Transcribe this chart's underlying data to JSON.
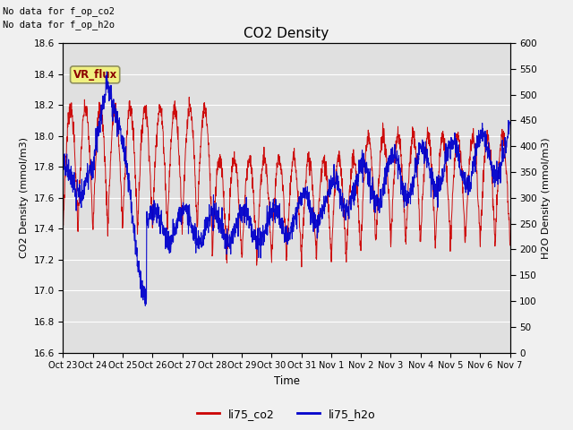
{
  "title": "CO2 Density",
  "xlabel": "Time",
  "ylabel_left": "CO2 Density (mmol/m3)",
  "ylabel_right": "H2O Density (mmol/m3)",
  "top_text_line1": "No data for f_op_co2",
  "top_text_line2": "No data for f_op_h2o",
  "tab_label": "VR_flux",
  "xtick_labels": [
    "Oct 23",
    "Oct 24",
    "Oct 25",
    "Oct 26",
    "Oct 27",
    "Oct 28",
    "Oct 29",
    "Oct 30",
    "Oct 31",
    "Nov 1",
    "Nov 2",
    "Nov 3",
    "Nov 4",
    "Nov 5",
    "Nov 6",
    "Nov 7"
  ],
  "ylim_left": [
    16.6,
    18.6
  ],
  "ylim_right": [
    0,
    600
  ],
  "yticks_left": [
    16.6,
    16.8,
    17.0,
    17.2,
    17.4,
    17.6,
    17.8,
    18.0,
    18.2,
    18.4,
    18.6
  ],
  "yticks_right": [
    0,
    50,
    100,
    150,
    200,
    250,
    300,
    350,
    400,
    450,
    500,
    550,
    600
  ],
  "co2_color": "#CC0000",
  "h2o_color": "#0000CC",
  "plot_bg_color": "#E0E0E0",
  "fig_bg_color": "#F0F0F0",
  "legend_co2": "li75_co2",
  "legend_h2o": "li75_h2o",
  "grid_color": "#FFFFFF",
  "n_points": 2000
}
